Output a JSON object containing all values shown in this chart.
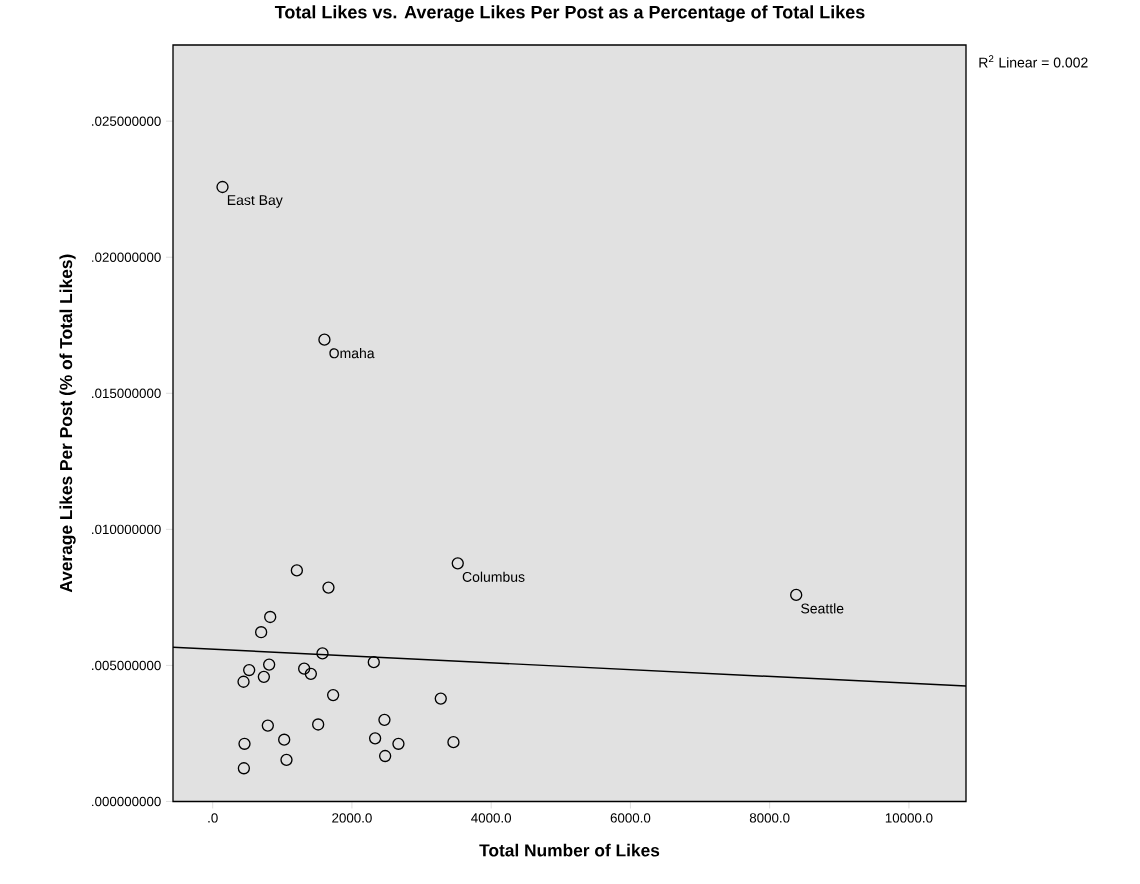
{
  "chart_data": {
    "type": "scatter",
    "title": "Total Likes vs. Average Likes Per Post as a Percentage of Total Likes",
    "xlabel": "Total Number of Likes",
    "ylabel": "Average Likes Per Post (% of Total Likes)",
    "xlim": [
      -570,
      10820
    ],
    "ylim": [
      0,
      0.0278
    ],
    "xticks": [
      {
        "value": 0,
        "label": ".0"
      },
      {
        "value": 2000,
        "label": "2000.0"
      },
      {
        "value": 4000,
        "label": "4000.0"
      },
      {
        "value": 6000,
        "label": "6000.0"
      },
      {
        "value": 8000,
        "label": "8000.0"
      },
      {
        "value": 10000,
        "label": "10000.0"
      }
    ],
    "yticks": [
      {
        "value": 0,
        "label": ".000000000"
      },
      {
        "value": 0.005,
        "label": ".005000000"
      },
      {
        "value": 0.01,
        "label": ".010000000"
      },
      {
        "value": 0.015,
        "label": ".015000000"
      },
      {
        "value": 0.02,
        "label": ".020000000"
      },
      {
        "value": 0.025,
        "label": ".025000000"
      }
    ],
    "series": [
      {
        "marker": "circle",
        "color": "#000000",
        "x": [
          1209,
          1663,
          826,
          696,
          1577,
          2314,
          811,
          524,
          1314,
          1410,
          735,
          443,
          1730,
          3276,
          2467,
          792,
          1515,
          2333,
          1027,
          457,
          2668,
          3458,
          2477,
          1060,
          448,
          141,
          1605,
          3520,
          8381
        ],
        "values": [
          0.00849,
          0.00786,
          0.00678,
          0.00622,
          0.00544,
          0.00512,
          0.00503,
          0.00483,
          0.00488,
          0.00469,
          0.00458,
          0.0044,
          0.00391,
          0.00378,
          0.003,
          0.00279,
          0.00283,
          0.00232,
          0.00227,
          0.00212,
          0.00212,
          0.00218,
          0.00167,
          0.00153,
          0.00122,
          0.02258,
          0.01697,
          0.00875,
          0.00759
        ]
      },
      {
        "type": "line",
        "marker": "none",
        "line_style": "solid",
        "color": "#000000",
        "x": [
          -570,
          10820
        ],
        "values": [
          0.00567,
          0.00424
        ]
      }
    ],
    "annotations": [
      {
        "text": "East Bay",
        "x": 141,
        "y": 0.02258
      },
      {
        "text": "Omaha",
        "x": 1605,
        "y": 0.01697
      },
      {
        "text": "Columbus",
        "x": 3520,
        "y": 0.00875
      },
      {
        "text": "Seattle",
        "x": 8381,
        "y": 0.00759
      },
      "R$^{2}$ Linear = 0.002"
    ]
  }
}
